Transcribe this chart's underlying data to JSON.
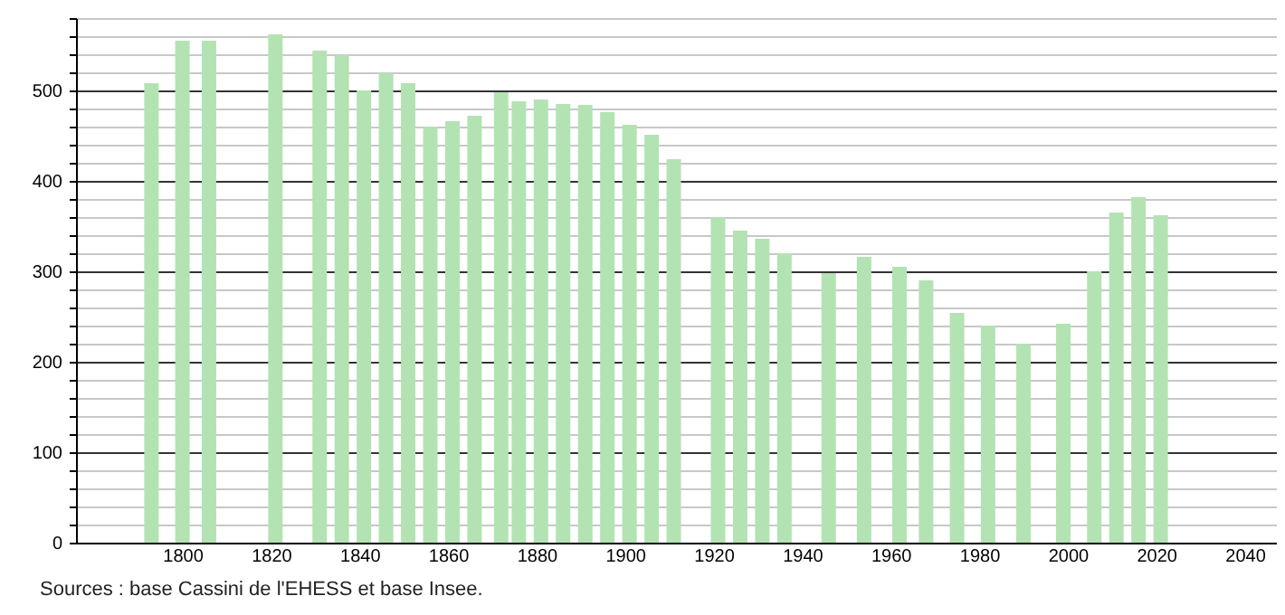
{
  "chart_data": {
    "type": "bar",
    "annotations": [
      "Sources : base Cassini de l'EHESS et base Insee."
    ],
    "x": [
      1793,
      1800,
      1806,
      1821,
      1831,
      1836,
      1841,
      1846,
      1851,
      1856,
      1861,
      1866,
      1872,
      1876,
      1881,
      1886,
      1891,
      1896,
      1901,
      1906,
      1911,
      1921,
      1926,
      1931,
      1936,
      1946,
      1954,
      1962,
      1968,
      1975,
      1982,
      1990,
      1999,
      2006,
      2011,
      2016,
      2021
    ],
    "values": [
      508,
      555,
      555,
      562,
      544,
      539,
      500,
      519,
      508,
      460,
      466,
      472,
      498,
      488,
      490,
      485,
      484,
      476,
      462,
      451,
      424,
      360,
      345,
      336,
      320,
      298,
      316,
      305,
      290,
      254,
      240,
      220,
      242,
      300,
      365,
      382,
      362
    ],
    "color": "#b3e3b3",
    "xlim": [
      1778,
      2045
    ],
    "xticks": [
      1800,
      1820,
      1840,
      1860,
      1880,
      1900,
      1920,
      1940,
      1960,
      1980,
      2000,
      2020,
      2040
    ],
    "ylim": [
      0,
      580
    ],
    "yticks": [
      0,
      {
        "value": 20,
        "label": null
      },
      {
        "value": 40,
        "label": null
      },
      {
        "value": 60,
        "label": null
      },
      {
        "value": 80,
        "label": null
      },
      100,
      {
        "value": 120,
        "label": null
      },
      {
        "value": 140,
        "label": null
      },
      {
        "value": 160,
        "label": null
      },
      {
        "value": 180,
        "label": null
      },
      200,
      {
        "value": 220,
        "label": null
      },
      {
        "value": 240,
        "label": null
      },
      {
        "value": 260,
        "label": null
      },
      {
        "value": 280,
        "label": null
      },
      300,
      {
        "value": 320,
        "label": null
      },
      {
        "value": 340,
        "label": null
      },
      {
        "value": 360,
        "label": null
      },
      {
        "value": 380,
        "label": null
      },
      400,
      {
        "value": 420,
        "label": null
      },
      {
        "value": 440,
        "label": null
      },
      {
        "value": 460,
        "label": null
      },
      {
        "value": 480,
        "label": null
      },
      500,
      {
        "value": 520,
        "label": null
      },
      {
        "value": 540,
        "label": null
      },
      {
        "value": 560,
        "label": null
      },
      {
        "value": 580,
        "label": null
      }
    ],
    "grid": "y"
  }
}
